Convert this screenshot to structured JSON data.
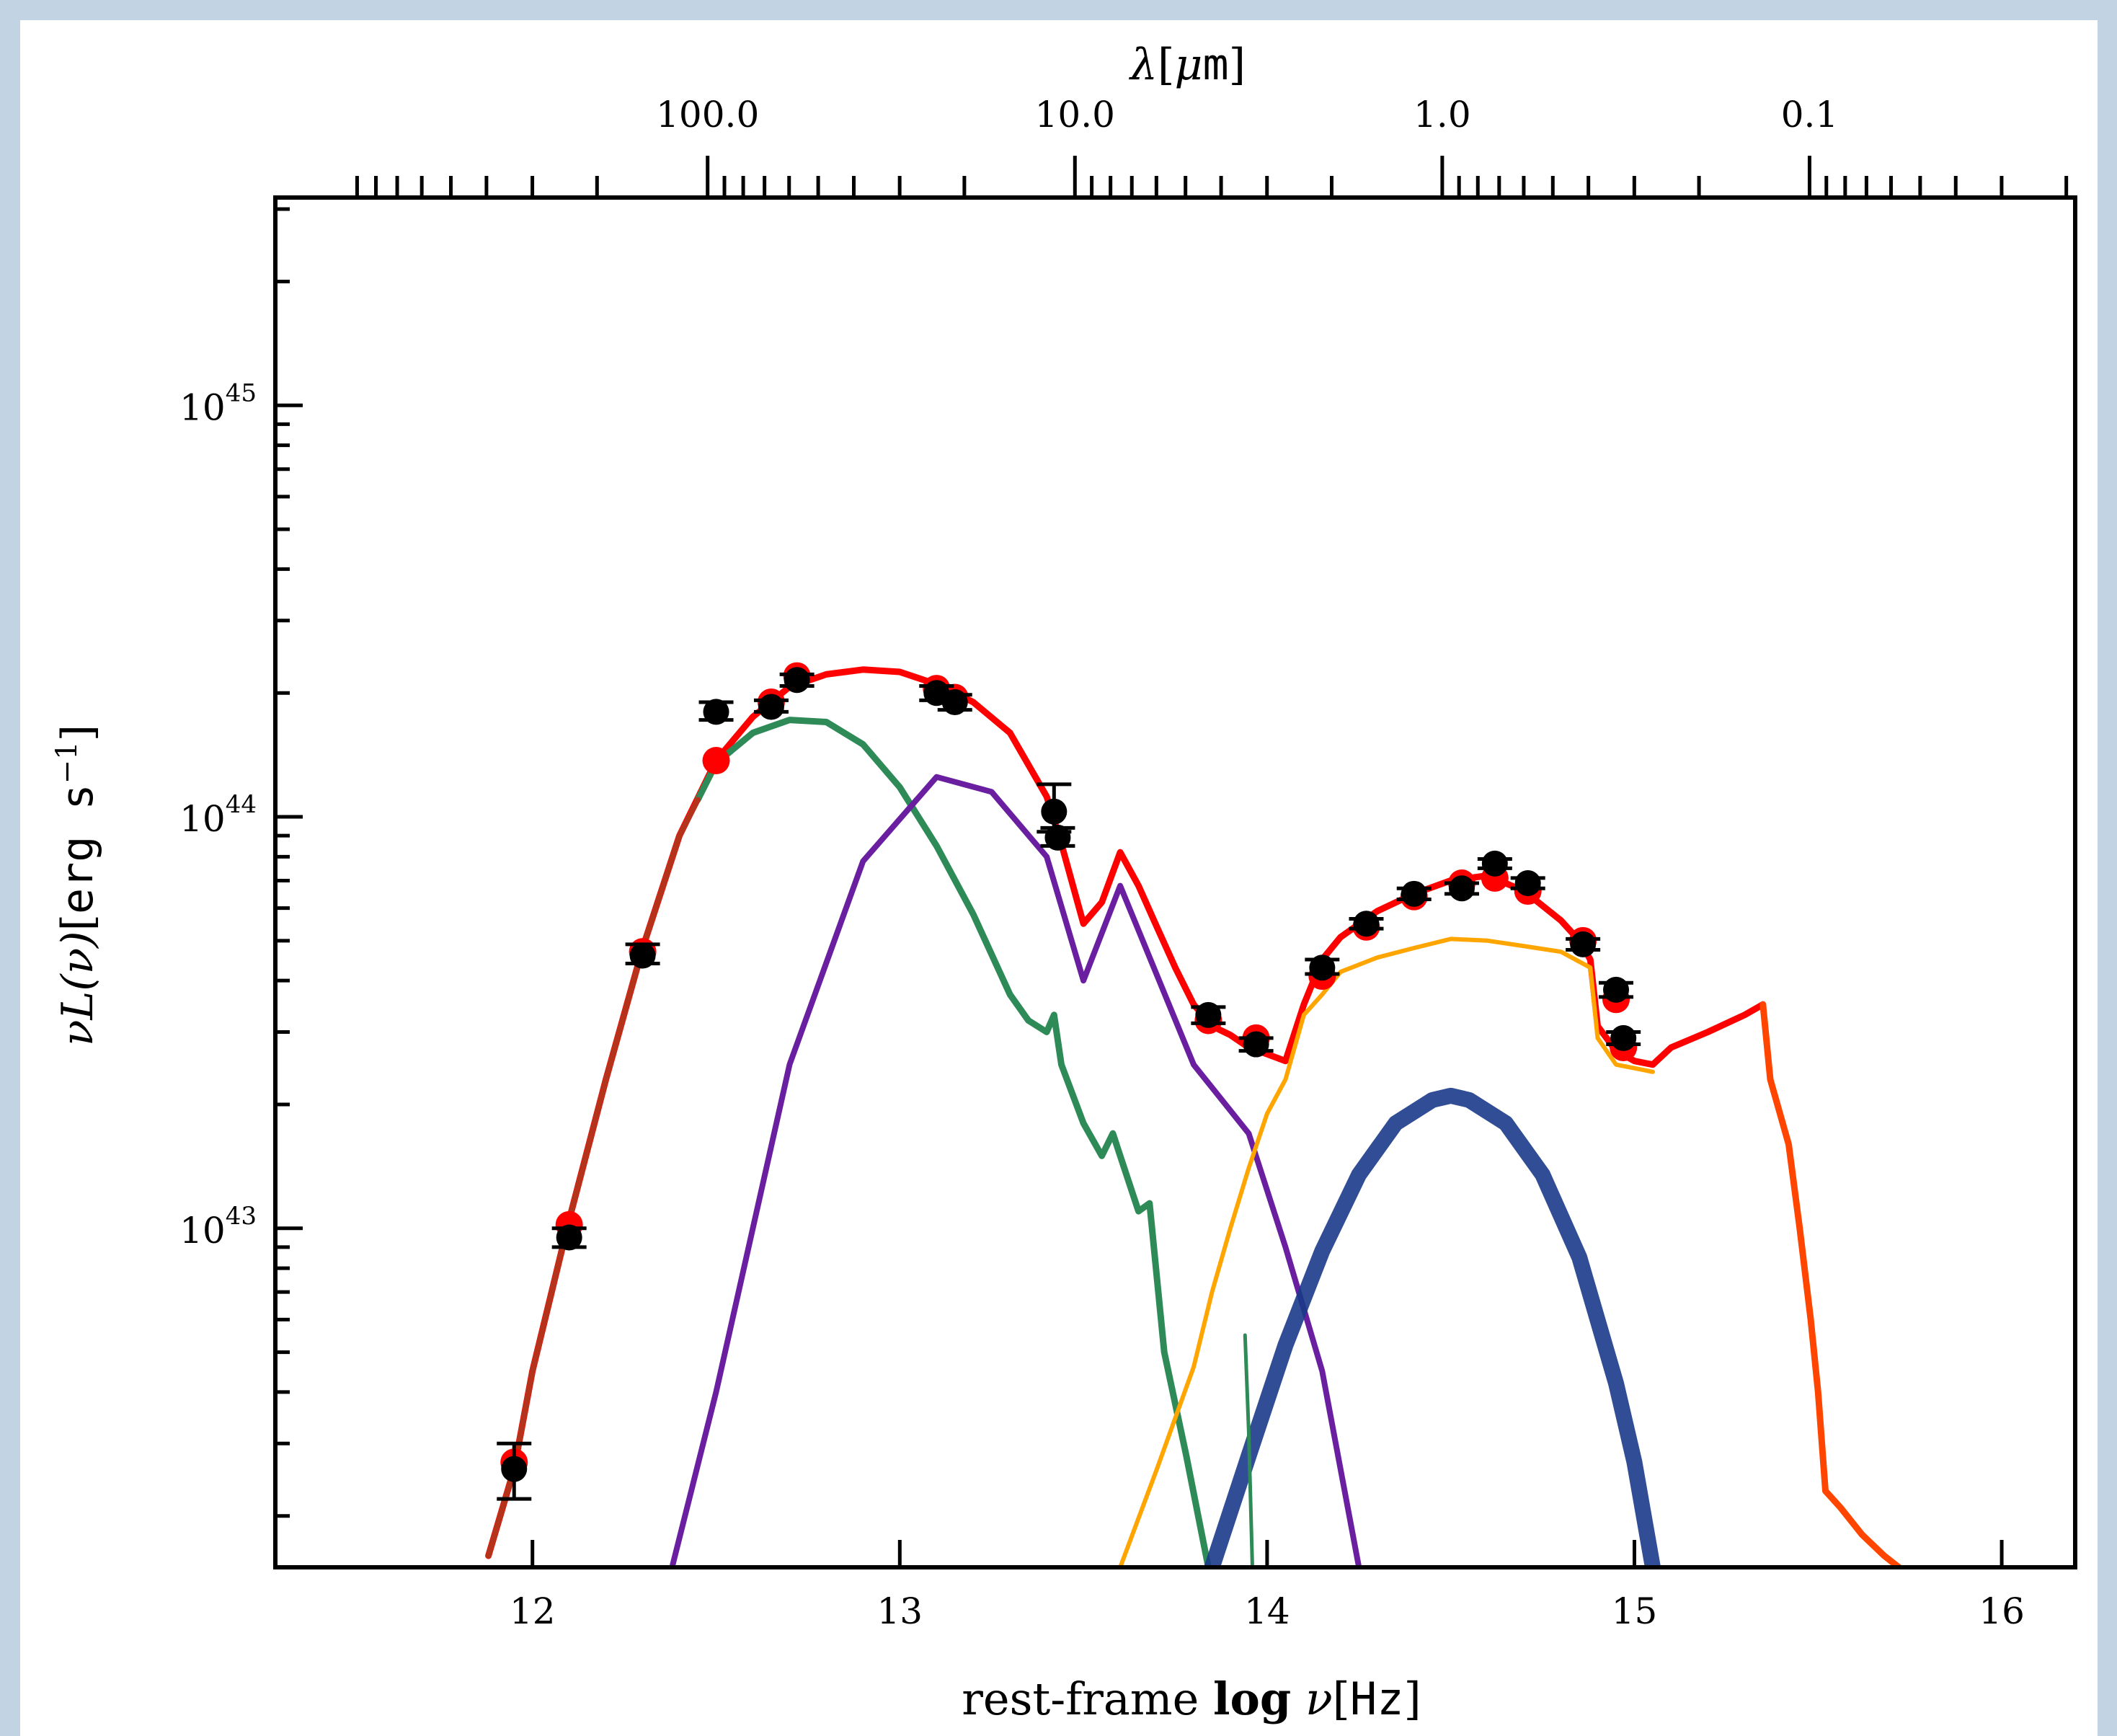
{
  "chart_data": {
    "type": "line",
    "xlabel": {
      "prefix": "rest-frame ",
      "bold": "log",
      "var": " ν",
      "unit": "Hz"
    },
    "top_xlabel": {
      "sym": "λ",
      "unit_mu": "μ",
      "unit_rest": "m"
    },
    "ylabel": {
      "prefix": "νL(ν)",
      "unit_a": "erg s",
      "unit_exp": "−1"
    },
    "xlim": [
      11.3,
      16.2
    ],
    "ylim": [
      1.5e+42,
      3.2e+45
    ],
    "yscale": "log",
    "x_ticks": [
      "12",
      "13",
      "14",
      "15",
      "16"
    ],
    "y_ticks": [
      {
        "base": "10",
        "exp": "43"
      },
      {
        "base": "10",
        "exp": "44"
      },
      {
        "base": "10",
        "exp": "45"
      }
    ],
    "top_ticks": [
      "100.0",
      "10.0",
      "1.0",
      "0.1"
    ],
    "colors": {
      "total": "#ff0000",
      "starburst": "#2e8b57",
      "torus": "#6a1fa0",
      "stellar": "#ffa500",
      "bbb": "#1a3a8a",
      "uv_total": "#ff4500",
      "far_ir_total": "#b5331a",
      "data": "#000000"
    },
    "series": [
      {
        "key": "total",
        "points": [
          [
            11.88,
            1.6e+42
          ],
          [
            11.95,
            2.6e+42
          ],
          [
            12.0,
            4.5e+42
          ],
          [
            12.1,
            1.05e+43
          ],
          [
            12.2,
            2.3e+43
          ],
          [
            12.3,
            4.8e+43
          ],
          [
            12.4,
            9e+43
          ],
          [
            12.5,
            1.37e+44
          ],
          [
            12.6,
            1.75e+44
          ],
          [
            12.7,
            2.07e+44
          ],
          [
            12.8,
            2.22e+44
          ],
          [
            12.9,
            2.28e+44
          ],
          [
            13.0,
            2.25e+44
          ],
          [
            13.1,
            2.1e+44
          ],
          [
            13.2,
            1.9e+44
          ],
          [
            13.3,
            1.6e+44
          ],
          [
            13.4,
            1.12e+44
          ],
          [
            13.44,
            8.6e+43
          ],
          [
            13.5,
            5.5e+43
          ],
          [
            13.55,
            6.2e+43
          ],
          [
            13.6,
            8.2e+43
          ],
          [
            13.65,
            6.8e+43
          ],
          [
            13.7,
            5.4e+43
          ],
          [
            13.75,
            4.3e+43
          ],
          [
            13.8,
            3.5e+43
          ],
          [
            13.85,
            3.1e+43
          ],
          [
            13.9,
            2.95e+43
          ],
          [
            13.95,
            2.75e+43
          ],
          [
            14.0,
            2.65e+43
          ],
          [
            14.05,
            2.55e+43
          ],
          [
            14.1,
            3.5e+43
          ],
          [
            14.15,
            4.5e+43
          ],
          [
            14.2,
            5.1e+43
          ],
          [
            14.3,
            5.9e+43
          ],
          [
            14.4,
            6.5e+43
          ],
          [
            14.5,
            7e+43
          ],
          [
            14.6,
            7.2e+43
          ],
          [
            14.7,
            6.6e+43
          ],
          [
            14.8,
            5.6e+43
          ],
          [
            14.85,
            5e+43
          ],
          [
            14.88,
            4.5e+43
          ],
          [
            14.9,
            3.1e+43
          ],
          [
            14.95,
            2.7e+43
          ],
          [
            15.0,
            2.55e+43
          ],
          [
            15.05,
            2.5e+43
          ],
          [
            15.1,
            2.75e+43
          ],
          [
            15.2,
            3e+43
          ],
          [
            15.3,
            3.3e+43
          ],
          [
            15.35,
            3.5e+43
          ]
        ]
      },
      {
        "key": "uv_total",
        "points": [
          [
            15.35,
            3.5e+43
          ],
          [
            15.37,
            2.3e+43
          ],
          [
            15.42,
            1.6e+43
          ],
          [
            15.45,
            1e+43
          ],
          [
            15.48,
            6e+42
          ],
          [
            15.5,
            4e+42
          ],
          [
            15.52,
            2.3e+42
          ],
          [
            15.56,
            2.1e+42
          ],
          [
            15.62,
            1.8e+42
          ],
          [
            15.68,
            1.6e+42
          ],
          [
            15.72,
            1.5e+42
          ]
        ]
      },
      {
        "key": "starburst",
        "points": [
          [
            12.45,
            1.1e+44
          ],
          [
            12.5,
            1.35e+44
          ],
          [
            12.6,
            1.6e+44
          ],
          [
            12.7,
            1.72e+44
          ],
          [
            12.8,
            1.7e+44
          ],
          [
            12.9,
            1.5e+44
          ],
          [
            13.0,
            1.18e+44
          ],
          [
            13.1,
            8.5e+43
          ],
          [
            13.2,
            5.8e+43
          ],
          [
            13.3,
            3.7e+43
          ],
          [
            13.35,
            3.2e+43
          ],
          [
            13.4,
            3e+43
          ],
          [
            13.42,
            3.3e+43
          ],
          [
            13.44,
            2.5e+43
          ],
          [
            13.5,
            1.8e+43
          ],
          [
            13.55,
            1.5e+43
          ],
          [
            13.58,
            1.7e+43
          ],
          [
            13.6,
            1.5e+43
          ],
          [
            13.65,
            1.1e+43
          ],
          [
            13.68,
            1.15e+43
          ],
          [
            13.72,
            5e+42
          ],
          [
            13.78,
            2.8e+42
          ],
          [
            13.84,
            1.5e+42
          ]
        ]
      },
      {
        "key": "torus",
        "points": [
          [
            12.38,
            1.5e+42
          ],
          [
            12.5,
            4e+42
          ],
          [
            12.7,
            2.5e+43
          ],
          [
            12.9,
            7.8e+43
          ],
          [
            13.1,
            1.25e+44
          ],
          [
            13.25,
            1.15e+44
          ],
          [
            13.4,
            8e+43
          ],
          [
            13.5,
            4e+43
          ],
          [
            13.6,
            6.8e+43
          ],
          [
            13.8,
            2.5e+43
          ],
          [
            13.95,
            1.7e+43
          ],
          [
            14.05,
            9e+42
          ],
          [
            14.15,
            4.5e+42
          ],
          [
            14.25,
            1.5e+42
          ]
        ]
      },
      {
        "key": "stellar",
        "points": [
          [
            13.6,
            1.5e+42
          ],
          [
            13.7,
            2.6e+42
          ],
          [
            13.8,
            4.6e+42
          ],
          [
            13.85,
            7e+42
          ],
          [
            13.9,
            1e+43
          ],
          [
            13.95,
            1.4e+43
          ],
          [
            14.0,
            1.9e+43
          ],
          [
            14.05,
            2.3e+43
          ],
          [
            14.1,
            3.3e+43
          ],
          [
            14.15,
            3.7e+43
          ],
          [
            14.2,
            4.2e+43
          ],
          [
            14.3,
            4.55e+43
          ],
          [
            14.4,
            4.8e+43
          ],
          [
            14.5,
            5.05e+43
          ],
          [
            14.6,
            5e+43
          ],
          [
            14.7,
            4.85e+43
          ],
          [
            14.8,
            4.7e+43
          ],
          [
            14.88,
            4.3e+43
          ],
          [
            14.9,
            2.9e+43
          ],
          [
            14.95,
            2.5e+43
          ],
          [
            15.0,
            2.45e+43
          ],
          [
            15.05,
            2.4e+43
          ]
        ]
      },
      {
        "key": "bbb",
        "points": [
          [
            13.85,
            1.5e+42
          ],
          [
            13.95,
            2.8e+42
          ],
          [
            14.05,
            5.2e+42
          ],
          [
            14.15,
            8.8e+42
          ],
          [
            14.25,
            1.35e+43
          ],
          [
            14.35,
            1.8e+43
          ],
          [
            14.45,
            2.05e+43
          ],
          [
            14.5,
            2.1e+43
          ],
          [
            14.55,
            2.05e+43
          ],
          [
            14.65,
            1.8e+43
          ],
          [
            14.75,
            1.35e+43
          ],
          [
            14.85,
            8.5e+42
          ],
          [
            14.95,
            4.2e+42
          ],
          [
            15.0,
            2.7e+42
          ],
          [
            15.05,
            1.5e+42
          ]
        ]
      },
      {
        "key": "far_ir_total",
        "points": [
          [
            11.88,
            1.6e+42
          ],
          [
            11.95,
            2.6e+42
          ],
          [
            12.0,
            4.5e+42
          ],
          [
            12.1,
            1.05e+43
          ],
          [
            12.2,
            2.3e+43
          ],
          [
            12.3,
            4.8e+43
          ],
          [
            12.4,
            9e+43
          ],
          [
            12.45,
            1.1e+44
          ]
        ]
      },
      {
        "key": "spike",
        "points": [
          [
            13.94,
            5.5e+42
          ],
          [
            13.95,
            3.2e+42
          ],
          [
            13.96,
            1.5e+42
          ]
        ]
      }
    ],
    "data_points": [
      {
        "x": 11.95,
        "y": 2.6e+42,
        "ylo": 2.2e+42,
        "yhi": 3e+42
      },
      {
        "x": 12.1,
        "y": 9.5e+42,
        "ylo": 9e+42,
        "yhi": 1e+43
      },
      {
        "x": 12.3,
        "y": 4.6e+43,
        "ylo": 4.4e+43,
        "yhi": 4.9e+43
      },
      {
        "x": 12.5,
        "y": 1.8e+44,
        "ylo": 1.72e+44,
        "yhi": 1.9e+44
      },
      {
        "x": 12.65,
        "y": 1.85e+44,
        "ylo": 1.8e+44,
        "yhi": 1.92e+44
      },
      {
        "x": 12.72,
        "y": 2.15e+44,
        "ylo": 2.08e+44,
        "yhi": 2.22e+44
      },
      {
        "x": 13.1,
        "y": 2e+44,
        "ylo": 1.92e+44,
        "yhi": 2.08e+44
      },
      {
        "x": 13.15,
        "y": 1.9e+44,
        "ylo": 1.82e+44,
        "yhi": 1.98e+44
      },
      {
        "x": 13.42,
        "y": 1.03e+44,
        "ylo": 9.2e+43,
        "yhi": 1.2e+44
      },
      {
        "x": 13.43,
        "y": 8.9e+43,
        "ylo": 8.5e+43,
        "yhi": 9.4e+43
      },
      {
        "x": 13.84,
        "y": 3.3e+43,
        "ylo": 3.15e+43,
        "yhi": 3.45e+43
      },
      {
        "x": 13.97,
        "y": 2.8e+43,
        "ylo": 2.7e+43,
        "yhi": 2.9e+43
      },
      {
        "x": 14.15,
        "y": 4.3e+43,
        "ylo": 4.15e+43,
        "yhi": 4.5e+43
      },
      {
        "x": 14.27,
        "y": 5.5e+43,
        "ylo": 5.35e+43,
        "yhi": 5.65e+43
      },
      {
        "x": 14.4,
        "y": 6.5e+43,
        "ylo": 6.3e+43,
        "yhi": 6.7e+43
      },
      {
        "x": 14.53,
        "y": 6.7e+43,
        "ylo": 6.5e+43,
        "yhi": 6.9e+43
      },
      {
        "x": 14.62,
        "y": 7.7e+43,
        "ylo": 7.5e+43,
        "yhi": 7.9e+43
      },
      {
        "x": 14.71,
        "y": 6.9e+43,
        "ylo": 6.7e+43,
        "yhi": 7.1e+43
      },
      {
        "x": 14.86,
        "y": 4.9e+43,
        "ylo": 4.75e+43,
        "yhi": 5.05e+43
      },
      {
        "x": 14.95,
        "y": 3.8e+43,
        "ylo": 3.65e+43,
        "yhi": 3.95e+43
      },
      {
        "x": 14.97,
        "y": 2.9e+43,
        "ylo": 2.8e+43,
        "yhi": 3e+43
      }
    ],
    "model_points": [
      {
        "x": 11.95,
        "y": 2.7e+42
      },
      {
        "x": 12.1,
        "y": 1.02e+43
      },
      {
        "x": 12.3,
        "y": 4.7e+43
      },
      {
        "x": 12.5,
        "y": 1.37e+44
      },
      {
        "x": 12.65,
        "y": 1.9e+44
      },
      {
        "x": 12.72,
        "y": 2.2e+44
      },
      {
        "x": 13.1,
        "y": 2.05e+44
      },
      {
        "x": 13.15,
        "y": 1.95e+44
      },
      {
        "x": 13.84,
        "y": 3.2e+43
      },
      {
        "x": 13.97,
        "y": 2.9e+43
      },
      {
        "x": 14.15,
        "y": 4.1e+43
      },
      {
        "x": 14.27,
        "y": 5.4e+43
      },
      {
        "x": 14.4,
        "y": 6.4e+43
      },
      {
        "x": 14.53,
        "y": 6.9e+43
      },
      {
        "x": 14.62,
        "y": 7.1e+43
      },
      {
        "x": 14.71,
        "y": 6.6e+43
      },
      {
        "x": 14.86,
        "y": 5e+43
      },
      {
        "x": 14.95,
        "y": 3.6e+43
      },
      {
        "x": 14.97,
        "y": 2.75e+43
      }
    ]
  }
}
